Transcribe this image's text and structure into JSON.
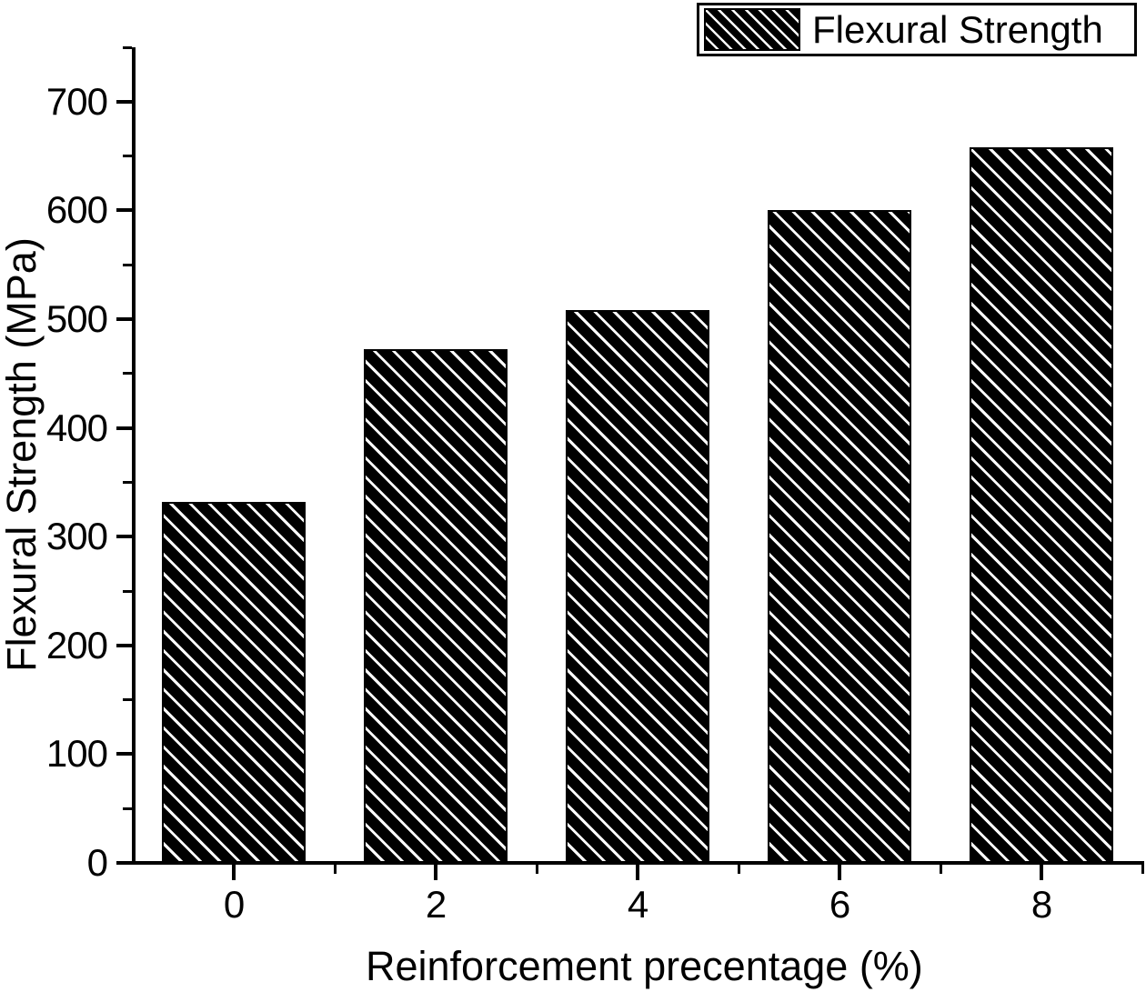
{
  "chart_data": {
    "type": "bar",
    "title": "",
    "categories": [
      "0",
      "2",
      "4",
      "6",
      "8"
    ],
    "values": [
      332,
      472,
      508,
      600,
      658
    ],
    "series_name": "Flexural Strength",
    "xlabel": "Reinforcement precentage (%)",
    "ylabel": "Flexural Strength (MPa)",
    "ylim": [
      0,
      750
    ],
    "xlim": [
      -1,
      9
    ],
    "ytick_major": [
      0,
      100,
      200,
      300,
      400,
      500,
      600,
      700
    ],
    "ytick_minor_step": 50,
    "x_major_positions": [
      0,
      2,
      4,
      6,
      8
    ],
    "x_minor_positions": [
      1,
      3,
      5,
      7,
      9
    ],
    "grid": false,
    "legend": {
      "label": "Flexural Strength",
      "position": "top-right",
      "swatch": "black-with-white-diagonal-hatch"
    },
    "colors": {
      "bar_fill": "#000000",
      "hatch_line": "#ffffff",
      "axis": "#000000",
      "background": "#ffffff"
    }
  }
}
